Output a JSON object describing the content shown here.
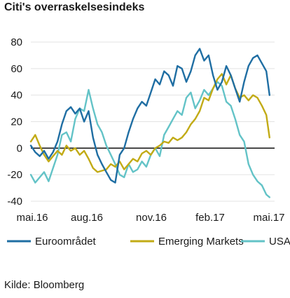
{
  "chart_data": {
    "type": "line",
    "title": "Citi's overraskelsesindeks",
    "source": "Kilde: Bloomberg",
    "xlabel": "",
    "ylabel": "",
    "ylim": [
      -40,
      80
    ],
    "yticks": [
      80,
      60,
      40,
      20,
      0,
      -20,
      -40
    ],
    "xtick_labels": [
      "mai.16",
      "aug.16",
      "nov.16",
      "feb.17",
      "mai.17"
    ],
    "xlim": [
      "2016-05-01",
      "2017-05-20"
    ],
    "grid": "horizontal",
    "legend_position": "bottom",
    "series": [
      {
        "name": "Euroområdet",
        "color": "#1f6ea3",
        "x": [
          "2016-05-01",
          "2016-05-08",
          "2016-05-15",
          "2016-05-22",
          "2016-05-29",
          "2016-06-05",
          "2016-06-12",
          "2016-06-19",
          "2016-06-26",
          "2016-07-03",
          "2016-07-10",
          "2016-07-17",
          "2016-07-24",
          "2016-07-31",
          "2016-08-07",
          "2016-08-14",
          "2016-08-21",
          "2016-08-28",
          "2016-09-04",
          "2016-09-11",
          "2016-09-18",
          "2016-09-25",
          "2016-10-02",
          "2016-10-09",
          "2016-10-16",
          "2016-10-23",
          "2016-10-30",
          "2016-11-06",
          "2016-11-13",
          "2016-11-20",
          "2016-11-27",
          "2016-12-04",
          "2016-12-11",
          "2016-12-18",
          "2016-12-25",
          "2017-01-01",
          "2017-01-08",
          "2017-01-15",
          "2017-01-22",
          "2017-01-29",
          "2017-02-05",
          "2017-02-12",
          "2017-02-19",
          "2017-02-26",
          "2017-03-05",
          "2017-03-12",
          "2017-03-19",
          "2017-03-26",
          "2017-04-02",
          "2017-04-09",
          "2017-04-16",
          "2017-04-23",
          "2017-04-30",
          "2017-05-07",
          "2017-05-12"
        ],
        "values": [
          2,
          -3,
          -6,
          -2,
          -8,
          -3,
          5,
          18,
          28,
          31,
          26,
          30,
          20,
          28,
          8,
          -5,
          -12,
          -18,
          -24,
          -26,
          -5,
          0,
          12,
          22,
          30,
          35,
          32,
          42,
          52,
          48,
          58,
          55,
          47,
          62,
          60,
          50,
          58,
          70,
          75,
          66,
          70,
          55,
          44,
          50,
          62,
          55,
          45,
          35,
          50,
          62,
          68,
          70,
          64,
          58,
          40
        ]
      },
      {
        "name": "Emerging Markets",
        "color": "#c2ab16",
        "x": [
          "2016-05-01",
          "2016-05-08",
          "2016-05-15",
          "2016-05-22",
          "2016-05-29",
          "2016-06-05",
          "2016-06-12",
          "2016-06-19",
          "2016-06-26",
          "2016-07-03",
          "2016-07-10",
          "2016-07-17",
          "2016-07-24",
          "2016-07-31",
          "2016-08-07",
          "2016-08-14",
          "2016-08-21",
          "2016-08-28",
          "2016-09-04",
          "2016-09-11",
          "2016-09-18",
          "2016-09-25",
          "2016-10-02",
          "2016-10-09",
          "2016-10-16",
          "2016-10-23",
          "2016-10-30",
          "2016-11-06",
          "2016-11-13",
          "2016-11-20",
          "2016-11-27",
          "2016-12-04",
          "2016-12-11",
          "2016-12-18",
          "2016-12-25",
          "2017-01-01",
          "2017-01-08",
          "2017-01-15",
          "2017-01-22",
          "2017-01-29",
          "2017-02-05",
          "2017-02-12",
          "2017-02-19",
          "2017-02-26",
          "2017-03-05",
          "2017-03-12",
          "2017-03-19",
          "2017-03-26",
          "2017-04-02",
          "2017-04-09",
          "2017-04-16",
          "2017-04-23",
          "2017-04-30",
          "2017-05-07",
          "2017-05-12"
        ],
        "values": [
          5,
          10,
          2,
          -5,
          -10,
          -6,
          -2,
          -5,
          2,
          -2,
          0,
          -5,
          -2,
          -8,
          -15,
          -18,
          -17,
          -16,
          -12,
          -14,
          -10,
          -16,
          -12,
          -8,
          -10,
          -4,
          -2,
          -5,
          0,
          2,
          5,
          4,
          8,
          6,
          8,
          12,
          18,
          22,
          28,
          38,
          36,
          45,
          52,
          56,
          48,
          55,
          45,
          38,
          40,
          36,
          40,
          38,
          32,
          25,
          8
        ]
      },
      {
        "name": "USA",
        "color": "#63c3c7",
        "x": [
          "2016-05-01",
          "2016-05-08",
          "2016-05-15",
          "2016-05-22",
          "2016-05-29",
          "2016-06-05",
          "2016-06-12",
          "2016-06-19",
          "2016-06-26",
          "2016-07-03",
          "2016-07-10",
          "2016-07-17",
          "2016-07-24",
          "2016-07-31",
          "2016-08-07",
          "2016-08-14",
          "2016-08-21",
          "2016-08-28",
          "2016-09-04",
          "2016-09-11",
          "2016-09-18",
          "2016-09-25",
          "2016-10-02",
          "2016-10-09",
          "2016-10-16",
          "2016-10-23",
          "2016-10-30",
          "2016-11-06",
          "2016-11-13",
          "2016-11-20",
          "2016-11-27",
          "2016-12-04",
          "2016-12-11",
          "2016-12-18",
          "2016-12-25",
          "2017-01-01",
          "2017-01-08",
          "2017-01-15",
          "2017-01-22",
          "2017-01-29",
          "2017-02-05",
          "2017-02-12",
          "2017-02-19",
          "2017-02-26",
          "2017-03-05",
          "2017-03-12",
          "2017-03-19",
          "2017-03-26",
          "2017-04-02",
          "2017-04-09",
          "2017-04-16",
          "2017-04-23",
          "2017-04-30",
          "2017-05-07",
          "2017-05-12"
        ],
        "values": [
          -20,
          -26,
          -22,
          -18,
          -25,
          -15,
          -5,
          10,
          12,
          5,
          22,
          30,
          28,
          44,
          30,
          18,
          12,
          2,
          -5,
          -12,
          -20,
          -22,
          -12,
          -18,
          -16,
          -10,
          -14,
          -5,
          0,
          -6,
          10,
          16,
          22,
          28,
          25,
          38,
          42,
          30,
          36,
          44,
          40,
          45,
          50,
          47,
          35,
          32,
          22,
          10,
          5,
          -12,
          -20,
          -25,
          -28,
          -35,
          -37
        ]
      }
    ]
  }
}
